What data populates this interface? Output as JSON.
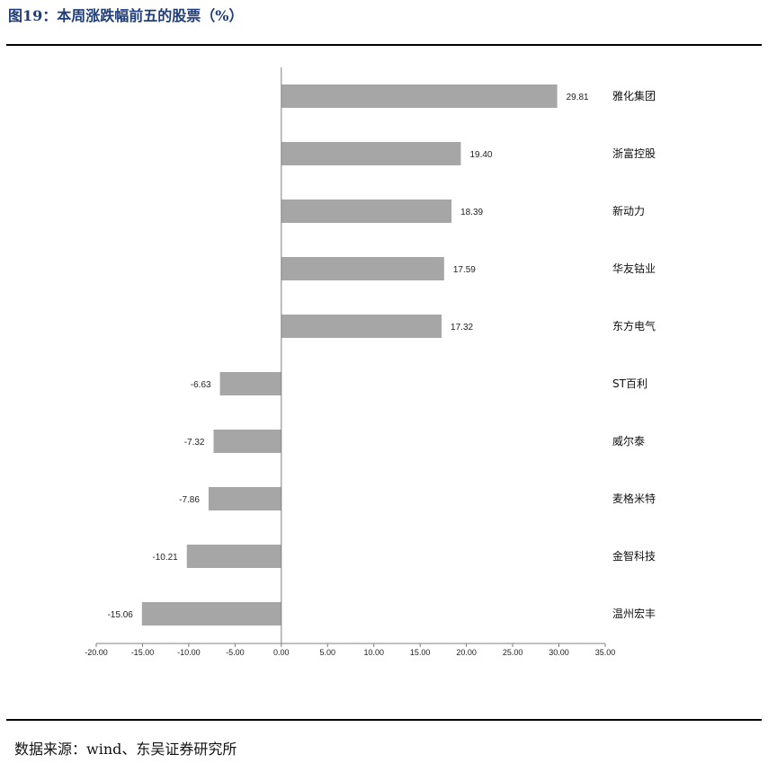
{
  "header": {
    "title": "图19：本周涨跌幅前五的股票（%）"
  },
  "footer": {
    "source": "数据来源：wind、东吴证券研究所"
  },
  "chart_data": {
    "type": "bar",
    "orientation": "horizontal",
    "categories": [
      "雅化集团",
      "浙富控股",
      "新动力",
      "华友钴业",
      "东方电气",
      "ST百利",
      "威尔泰",
      "麦格米特",
      "金智科技",
      "温州宏丰"
    ],
    "values": [
      29.81,
      19.4,
      18.39,
      17.59,
      17.32,
      -6.63,
      -7.32,
      -7.86,
      -10.21,
      -15.06
    ],
    "value_labels": [
      "29.81",
      "19.40",
      "18.39",
      "17.59",
      "17.32",
      "-6.63",
      "-7.32",
      "-7.86",
      "-10.21",
      "-15.06"
    ],
    "xlim": [
      -20,
      35
    ],
    "xticks": [
      "-20.00",
      "-15.00",
      "-10.00",
      "-5.00",
      "0.00",
      "5.00",
      "10.00",
      "15.00",
      "20.00",
      "25.00",
      "30.00",
      "35.00"
    ],
    "bar_color": "#a6a6a6",
    "grid": false,
    "legend": "none"
  }
}
